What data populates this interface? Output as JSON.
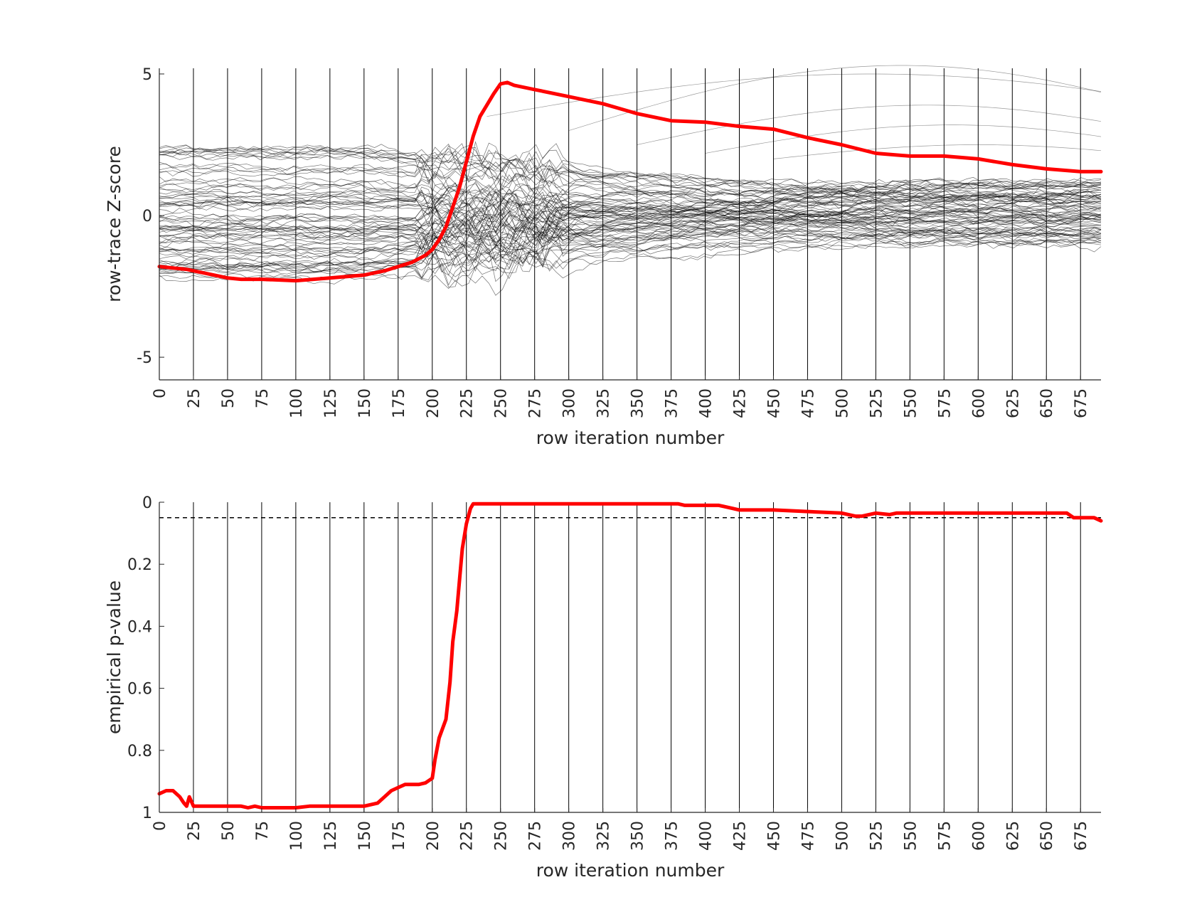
{
  "chart_data": [
    {
      "type": "line",
      "xlabel": "row iteration number",
      "ylabel": "row-trace Z-score",
      "xlim": [
        0,
        690
      ],
      "ylim": [
        -5.8,
        5.2
      ],
      "x_ticks": [
        0,
        25,
        50,
        75,
        100,
        125,
        150,
        175,
        200,
        225,
        250,
        275,
        300,
        325,
        350,
        375,
        400,
        425,
        450,
        475,
        500,
        525,
        550,
        575,
        600,
        625,
        650,
        675
      ],
      "y_ticks": [
        -5,
        0,
        5
      ],
      "grid": "vertical lines at every x tick",
      "background_series": {
        "count": 80,
        "color": "#000000",
        "description_free": true
      },
      "series": [
        {
          "color": "#ff0000",
          "x": [
            0,
            10,
            20,
            30,
            40,
            50,
            60,
            75,
            100,
            125,
            150,
            165,
            175,
            185,
            195,
            200,
            205,
            210,
            215,
            220,
            225,
            230,
            235,
            240,
            245,
            250,
            255,
            260,
            275,
            300,
            325,
            350,
            375,
            400,
            425,
            450,
            475,
            500,
            525,
            550,
            575,
            600,
            625,
            650,
            675,
            690
          ],
          "y": [
            -1.8,
            -1.85,
            -1.9,
            -2.0,
            -2.1,
            -2.2,
            -2.25,
            -2.25,
            -2.3,
            -2.2,
            -2.1,
            -1.95,
            -1.8,
            -1.65,
            -1.4,
            -1.2,
            -0.85,
            -0.4,
            0.3,
            1.0,
            1.9,
            2.8,
            3.5,
            3.9,
            4.3,
            4.65,
            4.7,
            4.6,
            4.45,
            4.2,
            3.95,
            3.6,
            3.35,
            3.3,
            3.15,
            3.05,
            2.75,
            2.5,
            2.2,
            2.1,
            2.1,
            2.0,
            1.8,
            1.65,
            1.55,
            1.55
          ]
        }
      ]
    },
    {
      "type": "line",
      "xlabel": "row iteration number",
      "ylabel": "empirical p-value",
      "xlim": [
        0,
        690
      ],
      "ylim": [
        1,
        0
      ],
      "y_reversed": true,
      "x_ticks": [
        0,
        25,
        50,
        75,
        100,
        125,
        150,
        175,
        200,
        225,
        250,
        275,
        300,
        325,
        350,
        375,
        400,
        425,
        450,
        475,
        500,
        525,
        550,
        575,
        600,
        625,
        650,
        675
      ],
      "y_ticks": [
        0,
        0.2,
        0.4,
        0.6,
        0.8,
        1
      ],
      "y_tick_labels": [
        "0",
        "0.2",
        "0.4",
        "0.6",
        "0.8",
        "1"
      ],
      "grid": "vertical lines at every x tick",
      "reference_line": {
        "y": 0.05,
        "style": "dashed",
        "color": "#000000"
      },
      "series": [
        {
          "color": "#ff0000",
          "x": [
            0,
            5,
            10,
            15,
            18,
            20,
            22,
            25,
            30,
            50,
            60,
            65,
            70,
            75,
            80,
            90,
            100,
            110,
            120,
            150,
            160,
            165,
            170,
            175,
            180,
            190,
            195,
            200,
            202,
            205,
            210,
            213,
            215,
            218,
            220,
            222,
            225,
            228,
            230,
            240,
            300,
            380,
            385,
            390,
            410,
            420,
            425,
            450,
            500,
            510,
            515,
            520,
            525,
            535,
            540,
            600,
            650,
            665,
            670,
            680,
            685,
            690
          ],
          "y": [
            0.94,
            0.93,
            0.93,
            0.95,
            0.97,
            0.98,
            0.95,
            0.98,
            0.98,
            0.98,
            0.98,
            0.985,
            0.98,
            0.985,
            0.985,
            0.985,
            0.985,
            0.98,
            0.98,
            0.98,
            0.97,
            0.95,
            0.93,
            0.92,
            0.91,
            0.91,
            0.905,
            0.89,
            0.83,
            0.76,
            0.7,
            0.58,
            0.45,
            0.35,
            0.25,
            0.15,
            0.07,
            0.02,
            0.005,
            0.005,
            0.005,
            0.005,
            0.01,
            0.01,
            0.01,
            0.02,
            0.025,
            0.025,
            0.035,
            0.045,
            0.045,
            0.04,
            0.035,
            0.04,
            0.035,
            0.035,
            0.035,
            0.035,
            0.05,
            0.05,
            0.05,
            0.06
          ]
        }
      ]
    }
  ]
}
